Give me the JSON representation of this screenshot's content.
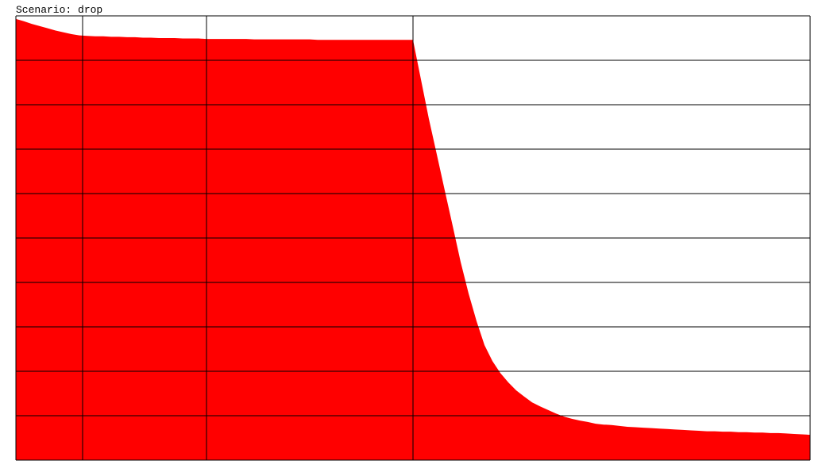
{
  "chart_data": {
    "type": "area",
    "title": "Scenario: drop",
    "x": [
      0,
      10,
      20,
      30,
      40,
      50,
      60,
      70,
      80,
      90,
      100,
      110,
      120,
      130,
      140,
      150,
      160,
      170,
      180,
      190,
      200,
      210,
      220,
      230,
      240,
      250,
      260,
      270,
      280,
      290,
      300,
      310,
      320,
      330,
      340,
      350,
      360,
      370,
      380,
      390,
      400,
      410,
      420,
      430,
      440,
      450,
      460,
      470,
      480,
      490,
      500,
      510,
      520,
      530,
      540,
      550,
      560,
      570,
      580,
      590,
      600,
      610,
      620,
      630,
      640,
      650,
      660,
      670,
      680,
      690,
      700,
      710,
      720,
      730,
      740,
      750,
      760,
      770,
      780,
      790,
      800,
      810,
      820,
      830,
      840,
      850,
      860,
      870,
      880,
      890,
      900,
      910,
      920,
      930,
      940,
      950,
      960,
      970,
      980,
      990,
      1000
    ],
    "series": [
      {
        "color": "#ff0000",
        "values": [
          9.93,
          9.88,
          9.82,
          9.77,
          9.72,
          9.67,
          9.63,
          9.59,
          9.56,
          9.55,
          9.54,
          9.54,
          9.53,
          9.53,
          9.52,
          9.52,
          9.51,
          9.51,
          9.5,
          9.5,
          9.5,
          9.49,
          9.49,
          9.49,
          9.48,
          9.48,
          9.48,
          9.48,
          9.48,
          9.48,
          9.47,
          9.47,
          9.47,
          9.47,
          9.47,
          9.47,
          9.47,
          9.47,
          9.46,
          9.46,
          9.46,
          9.46,
          9.46,
          9.46,
          9.46,
          9.46,
          9.46,
          9.46,
          9.46,
          9.46,
          9.46,
          8.57,
          7.68,
          6.88,
          6.07,
          5.27,
          4.46,
          3.75,
          3.13,
          2.59,
          2.23,
          1.96,
          1.75,
          1.57,
          1.43,
          1.3,
          1.21,
          1.13,
          1.05,
          0.98,
          0.93,
          0.89,
          0.86,
          0.82,
          0.8,
          0.79,
          0.77,
          0.75,
          0.74,
          0.73,
          0.72,
          0.71,
          0.7,
          0.69,
          0.68,
          0.67,
          0.66,
          0.65,
          0.65,
          0.64,
          0.64,
          0.63,
          0.63,
          0.62,
          0.62,
          0.61,
          0.61,
          0.6,
          0.59,
          0.58,
          0.57
        ]
      }
    ],
    "xlim": [
      0,
      1000
    ],
    "xticks": [
      0,
      84,
      240,
      500,
      1000
    ],
    "ylim": [
      0,
      10
    ],
    "yticks": [
      0,
      1,
      2,
      3,
      4,
      5,
      6,
      7,
      8,
      9,
      10
    ],
    "grid": true
  }
}
